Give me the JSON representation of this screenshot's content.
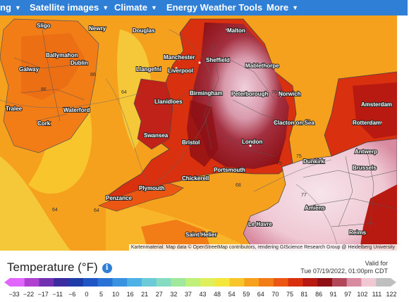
{
  "nav": {
    "first_label": "ng",
    "items": [
      {
        "label": "Satellite images"
      },
      {
        "label": "Climate"
      },
      {
        "label": "Energy Weather Tools"
      },
      {
        "label": "More"
      }
    ]
  },
  "map": {
    "attribution": "Kartenmaterial: Map data © OpenStreetMap contributors, rendering GIScience Research Group @ Heidelberg University",
    "cities": [
      "Sligo",
      "Newry",
      "Douglas",
      "Malton",
      "Ballymahon",
      "Galway",
      "Dublin",
      "Manchester",
      "Sheffield",
      "Llangefni",
      "Liverpool",
      "Mablethorpe",
      "Birmingham",
      "Peterborough",
      "Norwich",
      "Llanidloes",
      "Tralee",
      "Waterford",
      "Cork",
      "Amsterdam",
      "Swansea",
      "Clacton on Sea",
      "Rotterdam",
      "Bristol",
      "London",
      "Dunkirk",
      "Antwerp",
      "Brussels",
      "Portsmouth",
      "Chickerell",
      "Plymouth",
      "Penzance",
      "Amiens",
      "Le Havre",
      "Saint-Helier",
      "Reims"
    ],
    "values": [
      "86",
      "86",
      "64",
      "76",
      "75",
      "64",
      "68",
      "64",
      "75",
      "75",
      "77"
    ]
  },
  "legend": {
    "title": "Temperature (°F)",
    "info_icon": "info-icon",
    "valid_label": "Valid for",
    "valid_time": "Tue 07/19/2022, 01:00pm CDT",
    "ticks": [
      "-33",
      "-22",
      "-17",
      "-11",
      "-6",
      "0",
      "5",
      "10",
      "16",
      "21",
      "27",
      "32",
      "37",
      "43",
      "48",
      "54",
      "59",
      "64",
      "70",
      "75",
      "81",
      "86",
      "91",
      "97",
      "102",
      "111",
      "122"
    ]
  },
  "colors": {
    "nav_bg": "#2f7fd6",
    "scale": [
      "#e066ff",
      "#b040d0",
      "#7030b0",
      "#3b2ba0",
      "#1e3ca8",
      "#1f55c4",
      "#2a73d6",
      "#3a93e0",
      "#4fb2e6",
      "#6ccbd9",
      "#86dcc0",
      "#9fe89c",
      "#bff07a",
      "#dff05c",
      "#f5e63c",
      "#f8c62c",
      "#f6a11e",
      "#f27d17",
      "#eb5612",
      "#d9300f",
      "#b81a12",
      "#8e1015",
      "#b0485a",
      "#d88aa0",
      "#f0c8d4",
      "#bfbfbf"
    ]
  }
}
